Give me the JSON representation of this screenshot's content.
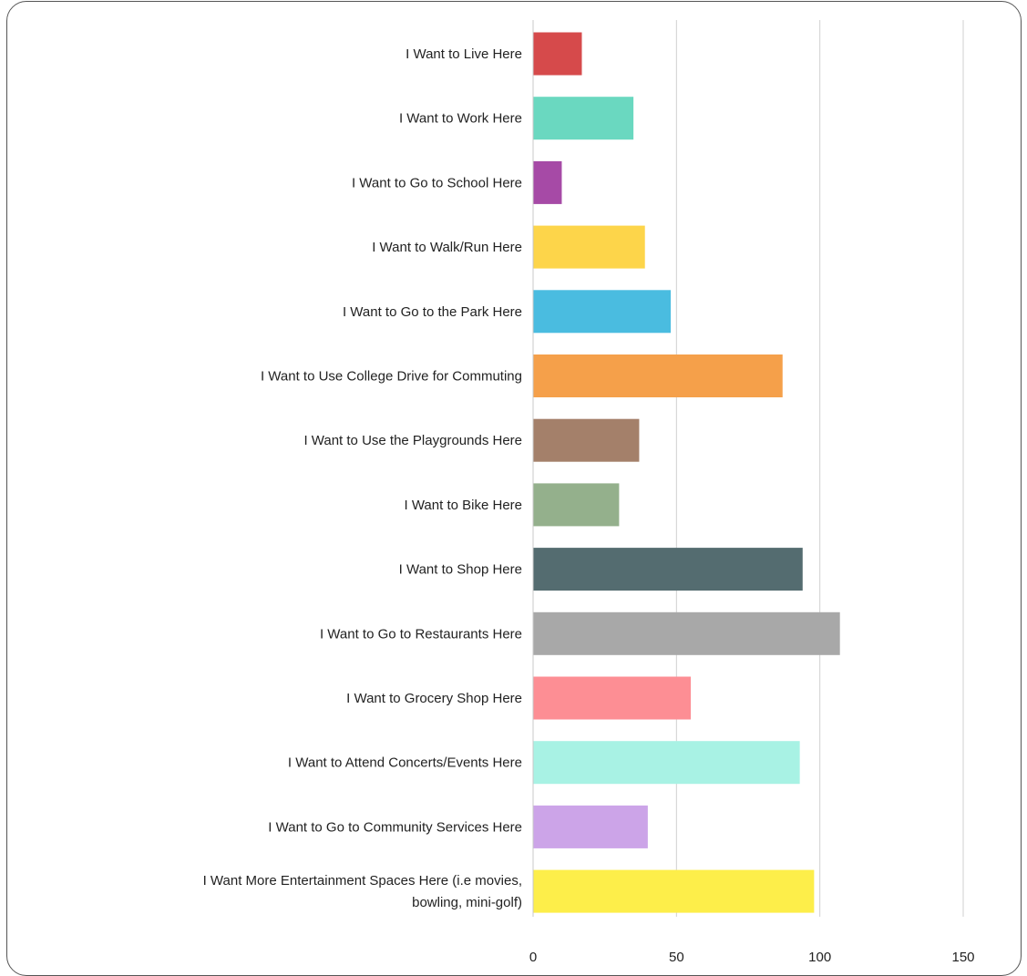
{
  "chart_data": {
    "type": "bar",
    "orientation": "horizontal",
    "categories": [
      [
        "I Want to Live Here"
      ],
      [
        "I Want to Work Here"
      ],
      [
        "I Want to Go to School Here"
      ],
      [
        "I Want to Walk/Run Here"
      ],
      [
        "I Want to Go to the Park Here"
      ],
      [
        "I Want to Use College Drive for Commuting"
      ],
      [
        "I Want to Use the Playgrounds Here"
      ],
      [
        "I Want to Bike Here"
      ],
      [
        "I Want to Shop Here"
      ],
      [
        "I Want to Go to Restaurants Here"
      ],
      [
        "I Want to Grocery Shop Here"
      ],
      [
        "I Want to Attend Concerts/Events Here"
      ],
      [
        "I Want to Go to Community Services Here"
      ],
      [
        "I Want More Entertainment Spaces Here (i.e movies,",
        "bowling, mini-golf)"
      ]
    ],
    "values": [
      17,
      35,
      10,
      39,
      48,
      87,
      37,
      30,
      94,
      107,
      55,
      93,
      40,
      98
    ],
    "colors": [
      "#d64a4b",
      "#6ad8c0",
      "#a64aa6",
      "#fdd54a",
      "#4abce0",
      "#f5a04a",
      "#a4806a",
      "#94b08c",
      "#546c70",
      "#a8a8a8",
      "#fd8e94",
      "#a8f2e4",
      "#cca4e8",
      "#fdee4a"
    ],
    "xlim": [
      0,
      150
    ],
    "xticks": [
      "0",
      "50",
      "100",
      "150"
    ],
    "grid": true,
    "title": "",
    "xlabel": "",
    "ylabel": ""
  }
}
